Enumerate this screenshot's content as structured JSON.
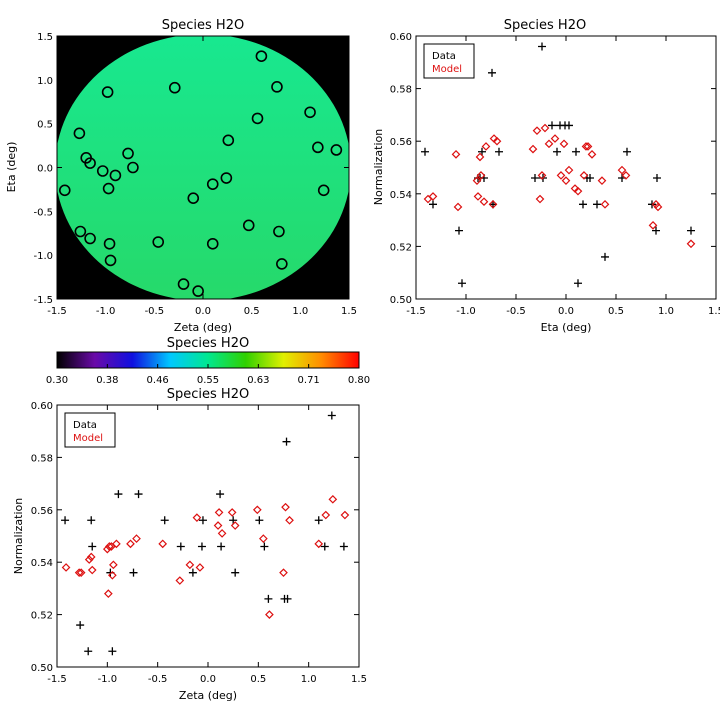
{
  "chart_data": [
    {
      "id": "map",
      "type": "heatmap",
      "title": "Species H2O",
      "xlabel": "Zeta (deg)",
      "ylabel": "Eta (deg)",
      "xlim": [
        -1.5,
        1.5
      ],
      "ylim": [
        -1.5,
        1.5
      ],
      "x_ticks": [
        -1.5,
        -1.0,
        -0.5,
        0.0,
        0.5,
        1.0,
        1.5
      ],
      "y_ticks": [
        -1.5,
        -1.0,
        -0.5,
        0.0,
        0.5,
        1.0,
        1.5
      ],
      "tick_labels": [
        "-1.5",
        "-1.0",
        "-0.5",
        "0.0",
        "0.5",
        "1.0",
        "1.5"
      ],
      "background_color": "#000000",
      "disk_radius": 1.52,
      "field_color_top": "#18e890",
      "field_color_bottom": "#26d96a",
      "marker": "circle",
      "marker_color": "#000000",
      "points": [
        [
          -1.42,
          -0.26
        ],
        [
          -1.27,
          0.39
        ],
        [
          -1.26,
          -0.73
        ],
        [
          -1.2,
          0.11
        ],
        [
          -1.16,
          0.05
        ],
        [
          -1.16,
          -0.81
        ],
        [
          -1.03,
          -0.04
        ],
        [
          -0.98,
          0.86
        ],
        [
          -0.97,
          -0.24
        ],
        [
          -0.96,
          -0.87
        ],
        [
          -0.95,
          -1.06
        ],
        [
          -0.9,
          -0.09
        ],
        [
          -0.77,
          0.16
        ],
        [
          -0.72,
          0.0
        ],
        [
          -0.46,
          -0.85
        ],
        [
          -0.29,
          0.91
        ],
        [
          -0.2,
          -1.33
        ],
        [
          -0.1,
          -0.35
        ],
        [
          -0.05,
          -1.41
        ],
        [
          0.1,
          -0.19
        ],
        [
          0.1,
          -0.87
        ],
        [
          0.24,
          -0.12
        ],
        [
          0.26,
          0.31
        ],
        [
          0.47,
          -0.66
        ],
        [
          0.56,
          0.56
        ],
        [
          0.6,
          1.27
        ],
        [
          0.76,
          0.92
        ],
        [
          0.78,
          -0.73
        ],
        [
          0.81,
          -1.1
        ],
        [
          1.1,
          0.63
        ],
        [
          1.18,
          0.23
        ],
        [
          1.24,
          -0.26
        ],
        [
          1.37,
          0.2
        ]
      ]
    },
    {
      "id": "colorbar",
      "type": "colorbar",
      "title": "Species H2O",
      "range": [
        0.3,
        0.8
      ],
      "ticks": [
        "0.30",
        "0.38",
        "0.46",
        "0.55",
        "0.63",
        "0.71",
        "0.80"
      ],
      "colors": [
        "#000000",
        "#6a0aa8",
        "#1010e0",
        "#00c8ff",
        "#00e890",
        "#30d000",
        "#e0f000",
        "#ff8c00",
        "#ff0000"
      ]
    },
    {
      "id": "eta",
      "type": "scatter",
      "title": "Species H2O",
      "xlabel": "Eta (deg)",
      "ylabel": "Normalization",
      "xlim": [
        -1.5,
        1.5
      ],
      "ylim": [
        0.5,
        0.6
      ],
      "x_ticks": [
        -1.5,
        -1.0,
        -0.5,
        0.0,
        0.5,
        1.0,
        1.5
      ],
      "x_tick_labels": [
        "-1.5",
        "-1.0",
        "-0.5",
        "0.0",
        "0.5",
        "1.0",
        "1.5"
      ],
      "y_ticks": [
        0.5,
        0.52,
        0.54,
        0.56,
        0.58,
        0.6
      ],
      "y_tick_labels": [
        "0.50",
        "0.52",
        "0.54",
        "0.56",
        "0.58",
        "0.60"
      ],
      "legend": {
        "position": "top-left",
        "entries": [
          "Data",
          "Model"
        ]
      },
      "series": [
        {
          "name": "Data",
          "marker": "plus",
          "color": "#000000",
          "points": [
            [
              -1.41,
              0.556
            ],
            [
              -1.33,
              0.536
            ],
            [
              -1.07,
              0.526
            ],
            [
              -1.04,
              0.506
            ],
            [
              -0.88,
              0.546
            ],
            [
              -0.86,
              0.546
            ],
            [
              -0.84,
              0.556
            ],
            [
              -0.82,
              0.546
            ],
            [
              -0.74,
              0.586
            ],
            [
              -0.73,
              0.536
            ],
            [
              -0.67,
              0.556
            ],
            [
              -0.31,
              0.546
            ],
            [
              -0.24,
              0.596
            ],
            [
              -0.23,
              0.546
            ],
            [
              -0.14,
              0.566
            ],
            [
              -0.09,
              0.556
            ],
            [
              -0.06,
              0.566
            ],
            [
              -0.01,
              0.566
            ],
            [
              0.03,
              0.566
            ],
            [
              0.1,
              0.556
            ],
            [
              0.12,
              0.506
            ],
            [
              0.17,
              0.536
            ],
            [
              0.21,
              0.546
            ],
            [
              0.24,
              0.546
            ],
            [
              0.31,
              0.536
            ],
            [
              0.39,
              0.516
            ],
            [
              0.56,
              0.546
            ],
            [
              0.61,
              0.556
            ],
            [
              0.86,
              0.536
            ],
            [
              0.9,
              0.526
            ],
            [
              0.91,
              0.546
            ],
            [
              1.25,
              0.526
            ]
          ]
        },
        {
          "name": "Model",
          "marker": "diamond",
          "color": "#dd1111",
          "points": [
            [
              -1.38,
              0.538
            ],
            [
              -1.33,
              0.539
            ],
            [
              -1.1,
              0.555
            ],
            [
              -1.08,
              0.535
            ],
            [
              -0.89,
              0.545
            ],
            [
              -0.88,
              0.539
            ],
            [
              -0.86,
              0.554
            ],
            [
              -0.85,
              0.547
            ],
            [
              -0.82,
              0.537
            ],
            [
              -0.8,
              0.558
            ],
            [
              -0.73,
              0.536
            ],
            [
              -0.72,
              0.561
            ],
            [
              -0.69,
              0.56
            ],
            [
              -0.33,
              0.557
            ],
            [
              -0.29,
              0.564
            ],
            [
              -0.26,
              0.538
            ],
            [
              -0.24,
              0.547
            ],
            [
              -0.21,
              0.565
            ],
            [
              -0.17,
              0.559
            ],
            [
              -0.11,
              0.561
            ],
            [
              -0.05,
              0.547
            ],
            [
              -0.02,
              0.559
            ],
            [
              0.0,
              0.545
            ],
            [
              0.03,
              0.549
            ],
            [
              0.09,
              0.542
            ],
            [
              0.12,
              0.541
            ],
            [
              0.2,
              0.558
            ],
            [
              0.22,
              0.558
            ],
            [
              0.18,
              0.547
            ],
            [
              0.26,
              0.555
            ],
            [
              0.36,
              0.545
            ],
            [
              0.39,
              0.536
            ],
            [
              0.56,
              0.549
            ],
            [
              0.6,
              0.547
            ],
            [
              0.87,
              0.528
            ],
            [
              0.9,
              0.536
            ],
            [
              0.92,
              0.535
            ],
            [
              1.25,
              0.521
            ]
          ]
        }
      ]
    },
    {
      "id": "zeta",
      "type": "scatter",
      "title": "Species H2O",
      "xlabel": "Zeta (deg)",
      "ylabel": "Normalization",
      "xlim": [
        -1.5,
        1.5
      ],
      "ylim": [
        0.5,
        0.6
      ],
      "x_ticks": [
        -1.5,
        -1.0,
        -0.5,
        0.0,
        0.5,
        1.0,
        1.5
      ],
      "x_tick_labels": [
        "-1.5",
        "-1.0",
        "-0.5",
        "0.0",
        "0.5",
        "1.0",
        "1.5"
      ],
      "y_ticks": [
        0.5,
        0.52,
        0.54,
        0.56,
        0.58,
        0.6
      ],
      "y_tick_labels": [
        "0.50",
        "0.52",
        "0.54",
        "0.56",
        "0.58",
        "0.60"
      ],
      "legend": {
        "position": "top-left",
        "entries": [
          "Data",
          "Model"
        ]
      },
      "series": [
        {
          "name": "Data",
          "marker": "plus",
          "color": "#000000",
          "points": [
            [
              -1.42,
              0.556
            ],
            [
              -1.27,
              0.516
            ],
            [
              -1.19,
              0.506
            ],
            [
              -1.16,
              0.556
            ],
            [
              -1.15,
              0.546
            ],
            [
              -0.97,
              0.536
            ],
            [
              -0.95,
              0.506
            ],
            [
              -0.89,
              0.566
            ],
            [
              -0.74,
              0.536
            ],
            [
              -0.69,
              0.566
            ],
            [
              -0.43,
              0.556
            ],
            [
              -0.27,
              0.546
            ],
            [
              -0.15,
              0.536
            ],
            [
              -0.06,
              0.546
            ],
            [
              -0.05,
              0.556
            ],
            [
              0.12,
              0.566
            ],
            [
              0.13,
              0.546
            ],
            [
              0.25,
              0.556
            ],
            [
              0.27,
              0.536
            ],
            [
              0.51,
              0.556
            ],
            [
              0.56,
              0.546
            ],
            [
              0.6,
              0.526
            ],
            [
              0.76,
              0.526
            ],
            [
              0.78,
              0.586
            ],
            [
              0.79,
              0.526
            ],
            [
              1.1,
              0.556
            ],
            [
              1.16,
              0.546
            ],
            [
              1.23,
              0.596
            ],
            [
              1.35,
              0.546
            ]
          ]
        },
        {
          "name": "Model",
          "marker": "diamond",
          "color": "#dd1111",
          "points": [
            [
              -1.41,
              0.538
            ],
            [
              -1.28,
              0.536
            ],
            [
              -1.26,
              0.536
            ],
            [
              -1.18,
              0.541
            ],
            [
              -1.16,
              0.542
            ],
            [
              -1.15,
              0.537
            ],
            [
              -1.0,
              0.545
            ],
            [
              -0.99,
              0.528
            ],
            [
              -0.98,
              0.546
            ],
            [
              -0.96,
              0.546
            ],
            [
              -0.94,
              0.539
            ],
            [
              -0.95,
              0.535
            ],
            [
              -0.91,
              0.547
            ],
            [
              -0.77,
              0.547
            ],
            [
              -0.71,
              0.549
            ],
            [
              -0.45,
              0.547
            ],
            [
              -0.28,
              0.533
            ],
            [
              -0.18,
              0.539
            ],
            [
              -0.11,
              0.557
            ],
            [
              -0.08,
              0.538
            ],
            [
              0.1,
              0.554
            ],
            [
              0.11,
              0.559
            ],
            [
              0.14,
              0.551
            ],
            [
              0.24,
              0.559
            ],
            [
              0.27,
              0.554
            ],
            [
              0.49,
              0.56
            ],
            [
              0.55,
              0.549
            ],
            [
              0.61,
              0.52
            ],
            [
              0.75,
              0.536
            ],
            [
              0.77,
              0.561
            ],
            [
              0.81,
              0.556
            ],
            [
              1.1,
              0.547
            ],
            [
              1.17,
              0.558
            ],
            [
              1.24,
              0.564
            ],
            [
              1.36,
              0.558
            ]
          ]
        }
      ]
    }
  ]
}
